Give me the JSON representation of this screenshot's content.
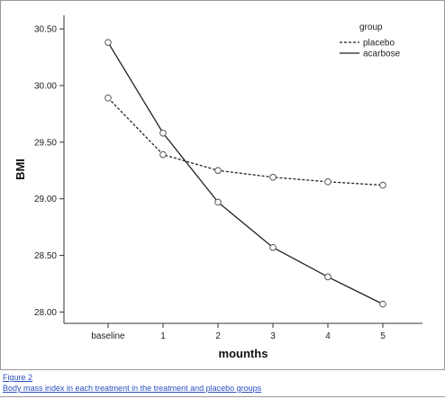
{
  "chart_data": {
    "type": "line",
    "categories": [
      "baseline",
      "1",
      "2",
      "3",
      "4",
      "5"
    ],
    "series": [
      {
        "name": "placebo",
        "values": [
          29.89,
          29.39,
          29.25,
          29.19,
          29.15,
          29.12
        ],
        "style": "dashed"
      },
      {
        "name": "acarbose",
        "values": [
          30.38,
          29.58,
          28.97,
          28.57,
          28.31,
          28.07
        ],
        "style": "solid"
      }
    ],
    "xlabel": "mounths",
    "ylabel": "BMI",
    "ylim": [
      27.9,
      30.62
    ],
    "yticks": [
      "28.00",
      "28.50",
      "29.00",
      "29.50",
      "30.00",
      "30.50"
    ],
    "legend": {
      "title": "group",
      "placement": "top-right"
    },
    "grid": false
  },
  "caption": {
    "figure": "Figure 2",
    "text": "Body mass index in each treatment in the treatment and placebo groups"
  }
}
